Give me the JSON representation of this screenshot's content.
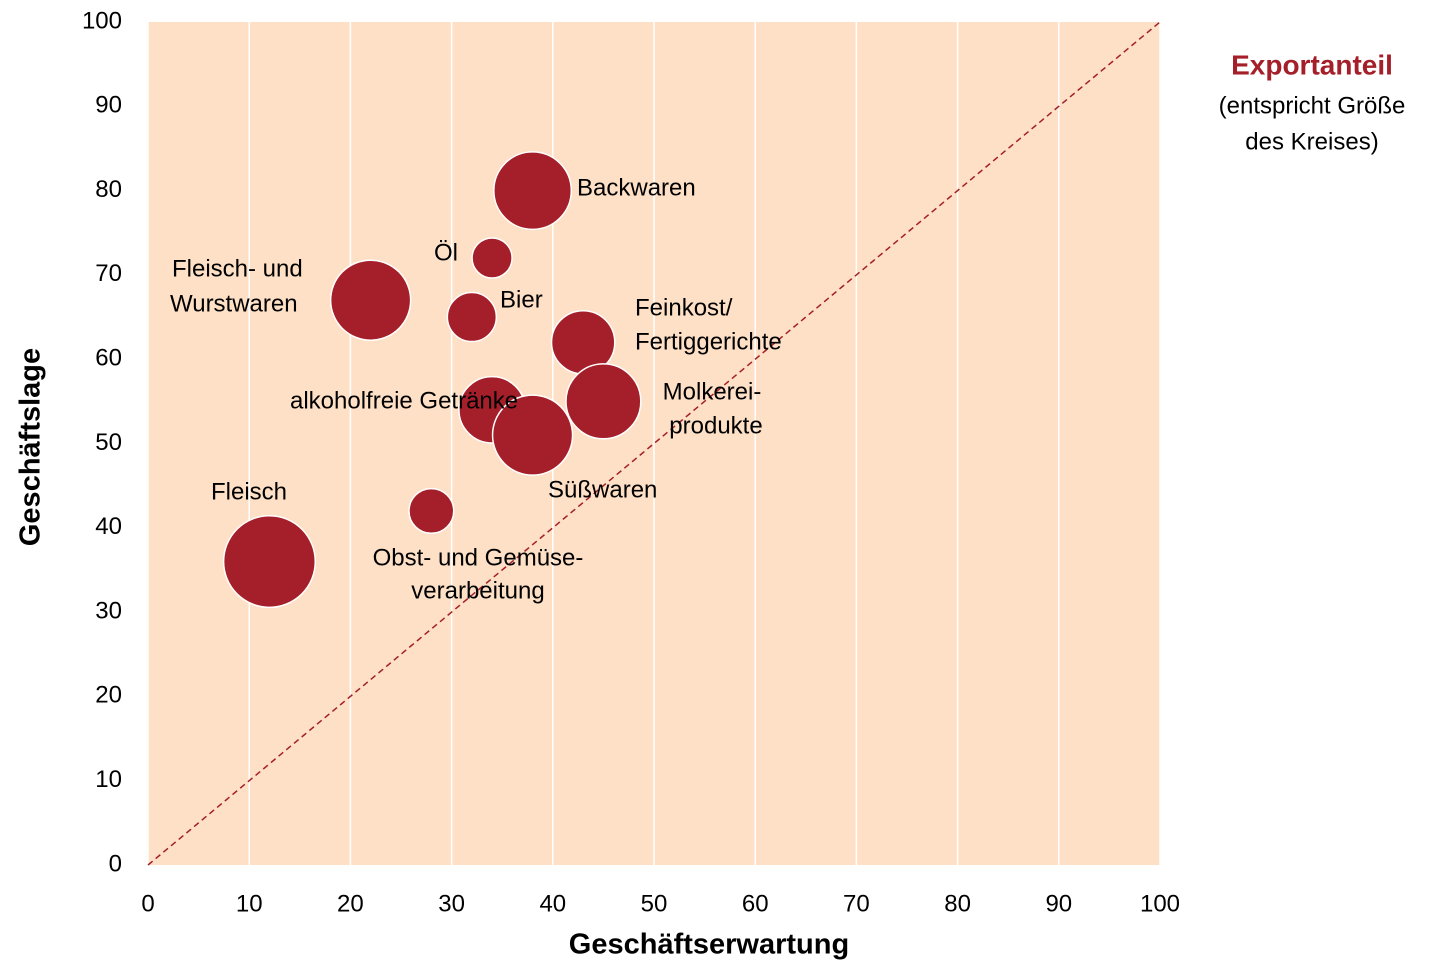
{
  "chart_data": {
    "type": "bubble",
    "xlabel": "Geschäftserwartung",
    "ylabel": "Geschäftslage",
    "legend": {
      "title": "Exportanteil",
      "lines": [
        "(entspricht Größe",
        "des Kreises)"
      ]
    },
    "labels": [
      [
        "Backwaren"
      ],
      [
        "Öl"
      ],
      [
        "Fleisch- und",
        "Wurstwaren"
      ],
      [
        "Bier"
      ],
      [
        "Feinkost/",
        "Fertiggerichte"
      ],
      [
        "Molkerei-",
        "produkte"
      ],
      [
        "alkoholfreie Getränke"
      ],
      [
        "Süßwaren"
      ],
      [
        "Obst- und Gemüse-",
        "verarbeitung"
      ],
      [
        "Fleisch"
      ]
    ],
    "x": [
      38,
      34,
      22,
      32,
      43,
      45,
      34,
      38,
      28,
      12
    ],
    "values": [
      80,
      72,
      67,
      65,
      62,
      55,
      54,
      51,
      42,
      36
    ],
    "sizes": [
      15,
      4,
      16,
      6,
      10,
      14,
      11,
      16,
      5,
      21
    ],
    "color": "#a51f2a",
    "background": "#fde0c5",
    "xlim": [
      0,
      100
    ],
    "xticks": [
      0,
      10,
      20,
      30,
      40,
      50,
      60,
      70,
      80,
      90,
      100
    ],
    "ylim": [
      0,
      100
    ],
    "yticks": [
      0,
      10,
      20,
      30,
      40,
      50,
      60,
      70,
      80,
      90,
      100
    ],
    "grid": true
  }
}
